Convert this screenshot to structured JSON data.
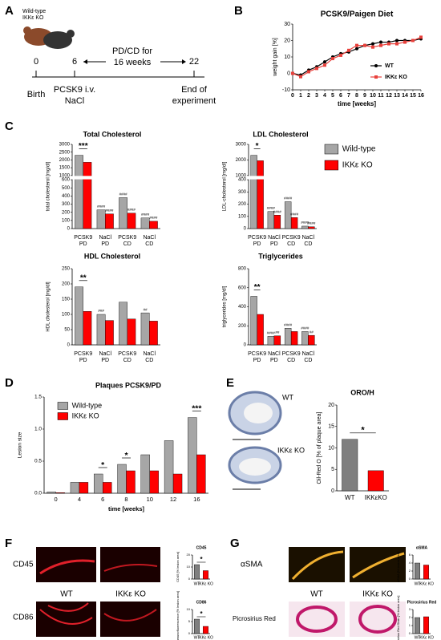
{
  "panel_labels": [
    "A",
    "B",
    "C",
    "D",
    "E",
    "F",
    "G"
  ],
  "timeline": {
    "mice": [
      "Wild-type",
      "IKKε KO"
    ],
    "points": [
      {
        "time": "0",
        "event": [
          "Birth"
        ]
      },
      {
        "time": "6",
        "event": [
          "PCSK9 i.v.",
          "NaCl"
        ]
      },
      {
        "time": "22",
        "event": [
          "End of",
          "experiment"
        ]
      }
    ],
    "interval": [
      "PD/CD for",
      "16 weeks"
    ]
  },
  "micrographs": {
    "E": {
      "labels": [
        "WT",
        "IKKε KO"
      ]
    },
    "F": {
      "rows": [
        "CD45",
        "CD86"
      ],
      "columns": [
        "WT",
        "IKKε KO"
      ]
    },
    "G": {
      "rows": [
        "αSMA",
        "Picrosirius Red"
      ],
      "columns": [
        "WT",
        "IKKε KO"
      ]
    }
  },
  "chart_data": [
    {
      "type": "line",
      "title": "PCSK9/Paigen Diet",
      "xlabel": "time [weeks]",
      "ylabel": "weight gain [%]",
      "x": [
        0,
        1,
        2,
        3,
        4,
        5,
        6,
        7,
        8,
        9,
        10,
        11,
        12,
        13,
        14,
        15,
        16
      ],
      "xlim": [
        0,
        16
      ],
      "xticks": [
        0,
        1,
        2,
        3,
        4,
        5,
        6,
        7,
        8,
        9,
        10,
        11,
        12,
        13,
        14,
        15,
        16
      ],
      "ylim": [
        -10,
        30
      ],
      "yticks": [
        -10,
        0,
        10,
        20,
        30
      ],
      "series": [
        {
          "name": "WT",
          "color": "#000000",
          "values": [
            0,
            -1,
            2,
            4,
            7,
            10,
            12,
            13,
            15,
            17,
            18,
            19,
            19,
            20,
            20,
            20,
            21
          ]
        },
        {
          "name": "IKKε KO",
          "color": "#e8413c",
          "values": [
            0,
            -2,
            1,
            3,
            5,
            9,
            11,
            14,
            17,
            17,
            16,
            17,
            18,
            18,
            19,
            20,
            22
          ]
        }
      ]
    },
    {
      "type": "bar",
      "title": "Total Cholesterol",
      "ylabel": "total cholesterol [mg/dl]",
      "categories": [
        [
          "PCSK9",
          "PD"
        ],
        [
          "NaCl",
          "PD"
        ],
        [
          "PCSK9",
          "CD"
        ],
        [
          "NaCl",
          "CD"
        ]
      ],
      "ylim": [
        0,
        3000
      ],
      "ybreak": [
        600,
        1000
      ],
      "yticks": [
        0,
        100,
        200,
        300,
        400,
        500,
        600,
        1000,
        1500,
        2000,
        2500,
        3000
      ],
      "significance": [
        "***",
        null,
        null,
        null
      ],
      "series": [
        {
          "name": "Wild-type",
          "color": "#a6a6a6",
          "values": [
            2300,
            230,
            380,
            130
          ],
          "marks": [
            null,
            "####",
            "####",
            "####"
          ]
        },
        {
          "name": "IKKε KO",
          "color": "#ff0000",
          "values": [
            1850,
            180,
            190,
            90
          ],
          "marks": [
            null,
            "####",
            "####",
            "####"
          ]
        }
      ]
    },
    {
      "type": "bar",
      "title": "LDL Cholesterol",
      "ylabel": "LDL-cholesterol [mg/dl]",
      "categories": [
        [
          "PCSK9",
          "PD"
        ],
        [
          "NaCl",
          "PD"
        ],
        [
          "PCSK9",
          "CD"
        ],
        [
          "NaCl",
          "CD"
        ]
      ],
      "ylim": [
        0,
        3000
      ],
      "ybreak": [
        400,
        1000
      ],
      "yticks": [
        0,
        100,
        200,
        300,
        400,
        1000,
        2000,
        3000
      ],
      "significance": [
        "*",
        null,
        null,
        null
      ],
      "series": [
        {
          "color": "#a6a6a6",
          "values": [
            2300,
            140,
            220,
            20
          ],
          "marks": [
            null,
            "####",
            "####",
            "####"
          ]
        },
        {
          "color": "#ff0000",
          "values": [
            1950,
            110,
            90,
            15
          ],
          "marks": [
            null,
            "####",
            "####",
            "####"
          ]
        }
      ]
    },
    {
      "type": "bar",
      "title": "HDL Cholesterol",
      "ylabel": "HDL cholesterol [mg/dl]",
      "categories": [
        [
          "PCSK9",
          "PD"
        ],
        [
          "NaCl",
          "PD"
        ],
        [
          "PCSK9",
          "CD"
        ],
        [
          "NaCl",
          "CD"
        ]
      ],
      "ylim": [
        0,
        250
      ],
      "yticks": [
        0,
        50,
        100,
        150,
        200,
        250
      ],
      "significance": [
        "**",
        null,
        null,
        null
      ],
      "series": [
        {
          "color": "#a6a6a6",
          "values": [
            190,
            100,
            140,
            105
          ],
          "marks": [
            null,
            "###",
            null,
            "##"
          ]
        },
        {
          "color": "#ff0000",
          "values": [
            110,
            80,
            85,
            78
          ]
        }
      ]
    },
    {
      "type": "bar",
      "title": "Triglycerides",
      "ylabel": "triglycerides [mg/dl]",
      "categories": [
        [
          "PCSK9",
          "PD"
        ],
        [
          "NaCl",
          "PD"
        ],
        [
          "PCSK9",
          "CD"
        ],
        [
          "NaCl",
          "CD"
        ]
      ],
      "ylim": [
        0,
        800
      ],
      "yticks": [
        0,
        200,
        400,
        600,
        800
      ],
      "significance": [
        "**",
        null,
        null,
        null
      ],
      "series": [
        {
          "color": "#a6a6a6",
          "values": [
            510,
            90,
            175,
            140
          ],
          "marks": [
            null,
            "####",
            "####",
            "####"
          ]
        },
        {
          "color": "#ff0000",
          "values": [
            320,
            95,
            140,
            100
          ],
          "marks": [
            null,
            "##",
            null,
            "##"
          ]
        }
      ]
    },
    {
      "type": "bar",
      "title": "Plaques PCSK9/PD",
      "xlabel": "time [weeks]",
      "ylabel": "Lesion size",
      "categories": [
        "0",
        "4",
        "6",
        "8",
        "10",
        "12",
        "16"
      ],
      "ylim": [
        0,
        1.5
      ],
      "yticks": [
        {
          "value": 0,
          "label": "0.0"
        },
        0.5,
        {
          "value": 1,
          "label": "1.0"
        },
        1.5
      ],
      "significance": [
        null,
        null,
        "*",
        "*",
        null,
        null,
        "***"
      ],
      "series": [
        {
          "name": "Wild-type",
          "color": "#a6a6a6",
          "values": [
            0.02,
            0.17,
            0.3,
            0.45,
            0.6,
            0.82,
            1.18
          ]
        },
        {
          "name": "IKKε KO",
          "color": "#ff0000",
          "values": [
            0.01,
            0.17,
            0.17,
            0.35,
            0.35,
            0.3,
            0.6
          ]
        }
      ]
    },
    {
      "type": "bar",
      "title": "ORO/H",
      "ylabel": "Oil-Red O [% of plaque area]",
      "categories": [
        "WT",
        "IKKεKO"
      ],
      "values": [
        12,
        4.7
      ],
      "colors": [
        "#7f7f7f",
        "#ff0000"
      ],
      "ylim": [
        0,
        20
      ],
      "yticks": [
        0,
        5,
        10,
        15,
        20
      ],
      "significance": "*"
    },
    {
      "type": "bar",
      "title": "CD45",
      "ylabel": "CD45 [% lesion area]",
      "categories": [
        "WT",
        "IKKε KO"
      ],
      "values": [
        12,
        7
      ],
      "colors": [
        "#7f7f7f",
        "#ff0000"
      ],
      "ylim": [
        0,
        20
      ],
      "yticks": [
        0,
        10,
        20
      ],
      "significance": "*"
    },
    {
      "type": "bar",
      "title": "CD86",
      "ylabel": "CD86 immunofluorescence [% lesion area]",
      "categories": [
        "WT",
        "IKKε KO"
      ],
      "values": [
        6,
        3
      ],
      "colors": [
        "#7f7f7f",
        "#ff0000"
      ],
      "ylim": [
        0,
        10
      ],
      "yticks": [
        0,
        5,
        10
      ],
      "significance": "*"
    },
    {
      "type": "bar",
      "title": "αSMA",
      "ylabel": "αSMA [% lesion area]",
      "categories": [
        "WT",
        "IKKε KO"
      ],
      "values": [
        4,
        3.5
      ],
      "colors": [
        "#7f7f7f",
        "#ff0000"
      ],
      "ylim": [
        0,
        6
      ],
      "yticks": [
        0,
        2,
        4,
        6
      ]
    },
    {
      "type": "bar",
      "title": "Picrosirius Red",
      "ylabel": "Picrosirius Red Stain [% lesion area]",
      "categories": [
        "WT",
        "IKKε KO"
      ],
      "values": [
        2.0,
        2.1
      ],
      "colors": [
        "#7f7f7f",
        "#ff0000"
      ],
      "ylim": [
        0,
        3
      ],
      "yticks": [
        0,
        1,
        2,
        3
      ]
    }
  ]
}
